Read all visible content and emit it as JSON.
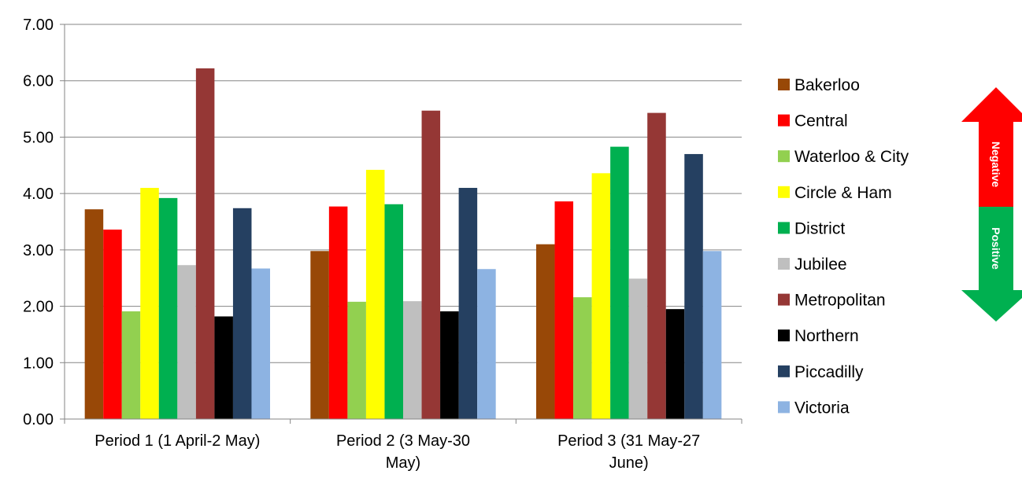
{
  "chart_data": {
    "type": "bar",
    "title": "",
    "xlabel": "",
    "ylabel": "",
    "ylim": [
      0,
      7
    ],
    "yticks": [
      "0.00",
      "1.00",
      "2.00",
      "3.00",
      "4.00",
      "5.00",
      "6.00",
      "7.00"
    ],
    "grid": true,
    "legend_position": "right",
    "categories": [
      [
        "Period 1 (1 April-2 May)"
      ],
      [
        "Period 2 (3 May-30",
        "May)"
      ],
      [
        "Period 3 (31 May-27",
        "June)"
      ]
    ],
    "series": [
      {
        "name": "Bakerloo",
        "color": "#984807",
        "values": [
          3.72,
          2.98,
          3.1
        ]
      },
      {
        "name": "Central",
        "color": "#ff0000",
        "values": [
          3.36,
          3.77,
          3.86
        ]
      },
      {
        "name": "Waterloo & City",
        "color": "#92d050",
        "values": [
          1.91,
          2.08,
          2.16
        ]
      },
      {
        "name": "Circle & Ham",
        "color": "#ffff00",
        "values": [
          4.1,
          4.42,
          4.36
        ]
      },
      {
        "name": "District",
        "color": "#00b050",
        "values": [
          3.92,
          3.81,
          4.83
        ]
      },
      {
        "name": "Jubilee",
        "color": "#bfbfbf",
        "values": [
          2.73,
          2.09,
          2.49
        ]
      },
      {
        "name": "Metropolitan",
        "color": "#953735",
        "values": [
          6.22,
          5.47,
          5.43
        ]
      },
      {
        "name": "Northern",
        "color": "#000000",
        "values": [
          1.82,
          1.91,
          1.95
        ]
      },
      {
        "name": "Piccadilly",
        "color": "#254061",
        "values": [
          3.74,
          4.1,
          4.7
        ]
      },
      {
        "name": "Victoria",
        "color": "#8db3e2",
        "values": [
          2.67,
          2.66,
          2.98
        ]
      }
    ]
  },
  "indicator": {
    "top_label": "Negative",
    "bottom_label": "Positive",
    "top_color": "#ff0000",
    "bottom_color": "#00b050"
  }
}
